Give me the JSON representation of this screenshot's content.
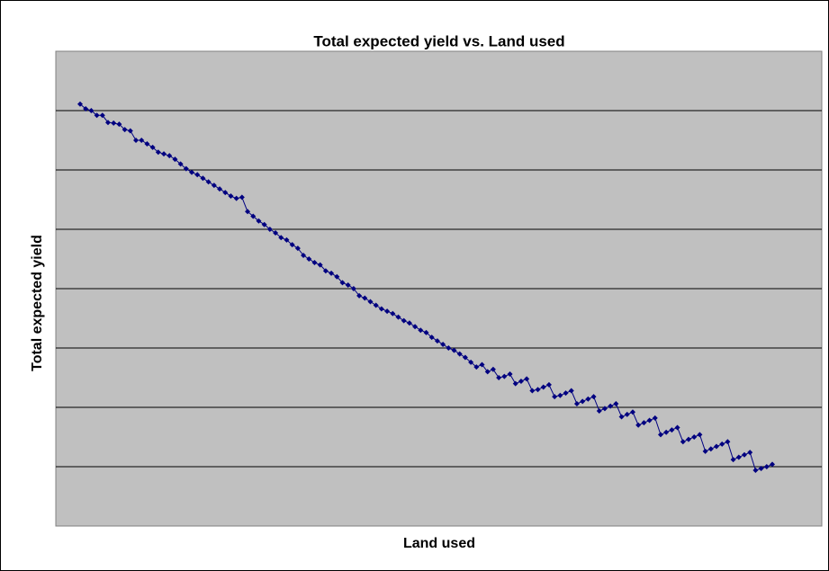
{
  "chart_data": {
    "type": "line",
    "title": "Total expected yield vs. Land used",
    "x_label": "Land used",
    "y_label": "Total expected yield",
    "ylim": [
      0,
      8
    ],
    "grid_lines": [
      1,
      2,
      3,
      4,
      5,
      6,
      7
    ],
    "grid": true,
    "background": "#c0c0c0",
    "series": [
      {
        "name": "Total expected yield",
        "color": "#000080",
        "values": [
          7.11,
          7.03,
          7.0,
          6.92,
          6.92,
          6.8,
          6.79,
          6.77,
          6.68,
          6.66,
          6.5,
          6.5,
          6.44,
          6.38,
          6.3,
          6.27,
          6.24,
          6.18,
          6.1,
          6.02,
          5.96,
          5.92,
          5.86,
          5.8,
          5.74,
          5.68,
          5.62,
          5.56,
          5.52,
          5.54,
          5.3,
          5.22,
          5.14,
          5.08,
          5.0,
          4.94,
          4.86,
          4.82,
          4.74,
          4.68,
          4.56,
          4.5,
          4.44,
          4.4,
          4.3,
          4.26,
          4.2,
          4.1,
          4.06,
          4.0,
          3.88,
          3.84,
          3.78,
          3.72,
          3.66,
          3.62,
          3.58,
          3.52,
          3.46,
          3.42,
          3.36,
          3.3,
          3.26,
          3.18,
          3.12,
          3.06,
          3.0,
          2.96,
          2.9,
          2.84,
          2.76,
          2.68,
          2.72,
          2.6,
          2.64,
          2.5,
          2.52,
          2.56,
          2.4,
          2.44,
          2.48,
          2.28,
          2.3,
          2.34,
          2.38,
          2.18,
          2.2,
          2.24,
          2.28,
          2.06,
          2.1,
          2.14,
          2.18,
          1.94,
          1.98,
          2.02,
          2.06,
          1.84,
          1.88,
          1.92,
          1.7,
          1.74,
          1.78,
          1.82,
          1.54,
          1.58,
          1.62,
          1.66,
          1.42,
          1.46,
          1.5,
          1.54,
          1.26,
          1.3,
          1.34,
          1.38,
          1.42,
          1.12,
          1.16,
          1.2,
          1.24,
          0.94,
          0.97,
          1.0,
          1.04
        ]
      }
    ]
  }
}
